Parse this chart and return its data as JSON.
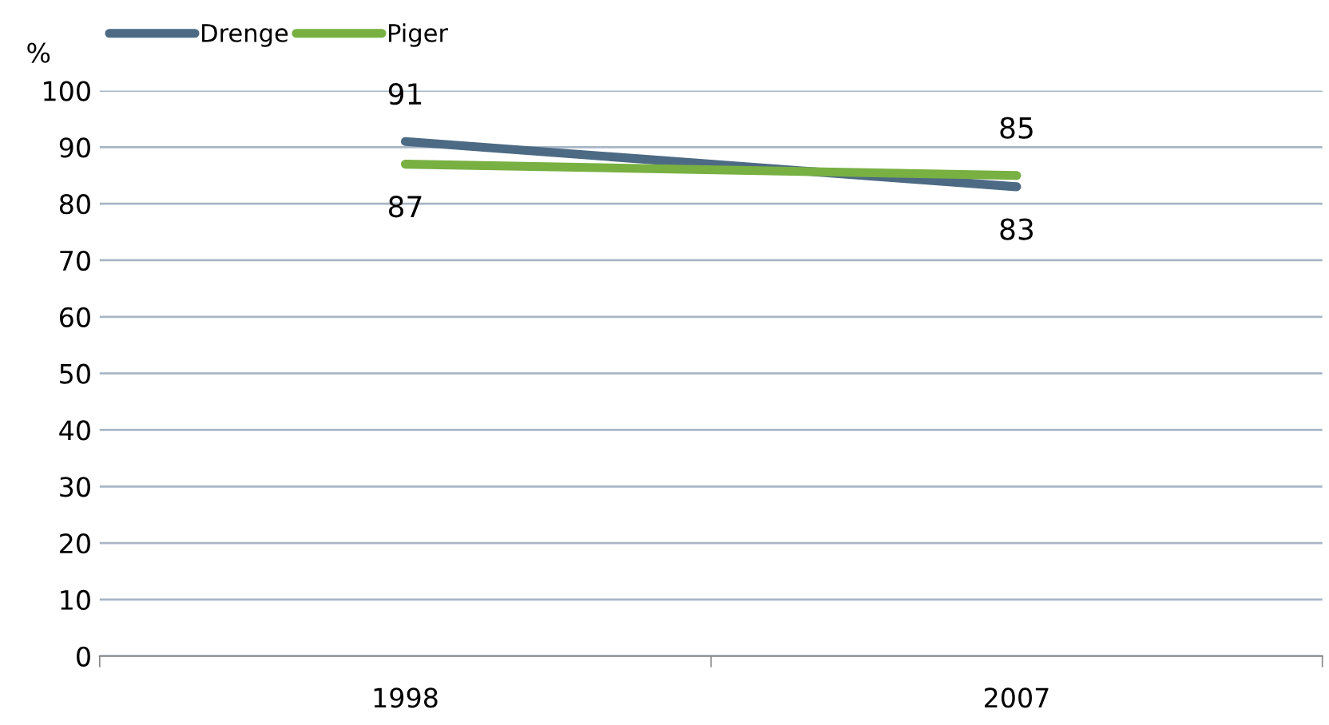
{
  "chart_data": {
    "type": "line",
    "ylabel": "%",
    "categories": [
      "1998",
      "2007"
    ],
    "series": [
      {
        "name": "Drenge",
        "color": "#4d6a84",
        "values": [
          91,
          83
        ]
      },
      {
        "name": "Piger",
        "color": "#78b042",
        "values": [
          87,
          85
        ]
      }
    ],
    "ylim": [
      0,
      100
    ],
    "yticks": [
      0,
      10,
      20,
      30,
      40,
      50,
      60,
      70,
      80,
      90,
      100
    ],
    "grid": "y",
    "legend": "top left",
    "data_labels": true,
    "marker": "none",
    "line_style": "solid"
  }
}
